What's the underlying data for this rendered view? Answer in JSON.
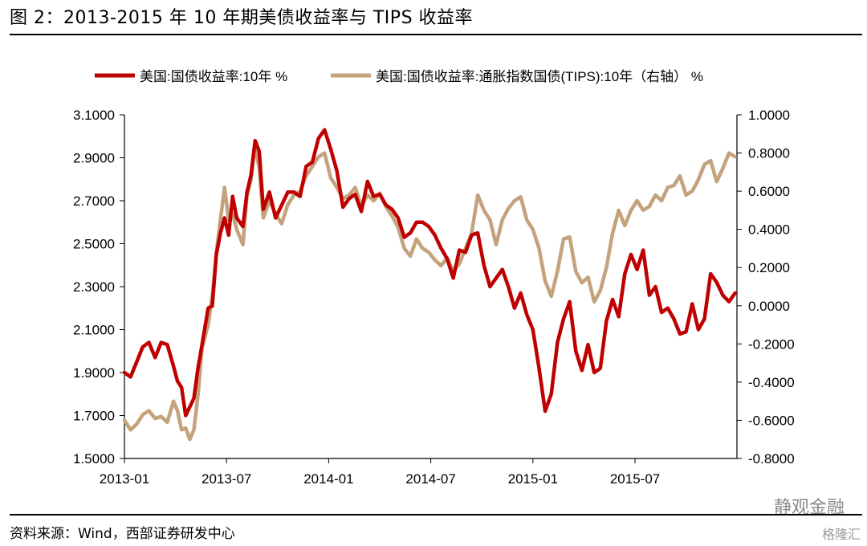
{
  "header": {
    "title": "图 2：2013-2015 年 10 年期美债收益率与 TIPS 收益率"
  },
  "footer": {
    "source": "资料来源：Wind，西部证券研发中心"
  },
  "watermark": {
    "text": "静观金融",
    "brand": "格隆汇"
  },
  "colors": {
    "nominal": "#c00000",
    "tips": "#c4a27c",
    "axis": "#000000"
  },
  "chart_data": {
    "type": "line",
    "title": "",
    "x_ticks": [
      "2013-01",
      "2013-07",
      "2014-01",
      "2014-07",
      "2015-01",
      "2015-07"
    ],
    "x_range": [
      "2013-01",
      "2015-12"
    ],
    "y_left": {
      "range": [
        1.5,
        3.1
      ],
      "ticks": [
        "1.5000",
        "1.7000",
        "1.9000",
        "2.1000",
        "2.3000",
        "2.5000",
        "2.7000",
        "2.9000",
        "3.1000"
      ]
    },
    "y_right": {
      "range": [
        -0.8,
        1.0
      ],
      "ticks": [
        "-0.8000",
        "-0.6000",
        "-0.4000",
        "-0.2000",
        "0.0000",
        "0.2000",
        "0.4000",
        "0.6000",
        "0.8000",
        "1.0000"
      ]
    },
    "grid": false,
    "legend_position": "top",
    "series": [
      {
        "name": "美国:国债收益率:10年 %",
        "axis": "left",
        "values": [
          [
            2013.0,
            1.9
          ],
          [
            2013.03,
            1.88
          ],
          [
            2013.06,
            1.95
          ],
          [
            2013.09,
            2.02
          ],
          [
            2013.12,
            2.04
          ],
          [
            2013.15,
            1.97
          ],
          [
            2013.18,
            2.04
          ],
          [
            2013.21,
            2.03
          ],
          [
            2013.24,
            1.93
          ],
          [
            2013.26,
            1.86
          ],
          [
            2013.28,
            1.83
          ],
          [
            2013.3,
            1.7
          ],
          [
            2013.32,
            1.74
          ],
          [
            2013.34,
            1.78
          ],
          [
            2013.36,
            1.92
          ],
          [
            2013.38,
            2.03
          ],
          [
            2013.41,
            2.2
          ],
          [
            2013.43,
            2.21
          ],
          [
            2013.45,
            2.45
          ],
          [
            2013.47,
            2.55
          ],
          [
            2013.49,
            2.62
          ],
          [
            2013.51,
            2.54
          ],
          [
            2013.53,
            2.72
          ],
          [
            2013.55,
            2.62
          ],
          [
            2013.58,
            2.58
          ],
          [
            2013.6,
            2.74
          ],
          [
            2013.62,
            2.82
          ],
          [
            2013.64,
            2.98
          ],
          [
            2013.66,
            2.93
          ],
          [
            2013.68,
            2.66
          ],
          [
            2013.71,
            2.74
          ],
          [
            2013.74,
            2.62
          ],
          [
            2013.77,
            2.68
          ],
          [
            2013.8,
            2.74
          ],
          [
            2013.83,
            2.74
          ],
          [
            2013.86,
            2.72
          ],
          [
            2013.89,
            2.86
          ],
          [
            2013.92,
            2.88
          ],
          [
            2013.95,
            2.99
          ],
          [
            2013.98,
            3.03
          ],
          [
            2014.01,
            2.94
          ],
          [
            2014.04,
            2.84
          ],
          [
            2014.07,
            2.67
          ],
          [
            2014.1,
            2.71
          ],
          [
            2014.13,
            2.73
          ],
          [
            2014.16,
            2.65
          ],
          [
            2014.19,
            2.79
          ],
          [
            2014.22,
            2.72
          ],
          [
            2014.25,
            2.73
          ],
          [
            2014.28,
            2.68
          ],
          [
            2014.31,
            2.66
          ],
          [
            2014.34,
            2.62
          ],
          [
            2014.37,
            2.53
          ],
          [
            2014.4,
            2.55
          ],
          [
            2014.43,
            2.6
          ],
          [
            2014.46,
            2.6
          ],
          [
            2014.49,
            2.58
          ],
          [
            2014.52,
            2.54
          ],
          [
            2014.55,
            2.48
          ],
          [
            2014.58,
            2.43
          ],
          [
            2014.61,
            2.34
          ],
          [
            2014.64,
            2.47
          ],
          [
            2014.67,
            2.46
          ],
          [
            2014.7,
            2.54
          ],
          [
            2014.73,
            2.55
          ],
          [
            2014.76,
            2.4
          ],
          [
            2014.79,
            2.3
          ],
          [
            2014.82,
            2.34
          ],
          [
            2014.85,
            2.38
          ],
          [
            2014.88,
            2.3
          ],
          [
            2014.91,
            2.2
          ],
          [
            2014.94,
            2.27
          ],
          [
            2014.97,
            2.17
          ],
          [
            2015.0,
            2.1
          ],
          [
            2015.03,
            1.92
          ],
          [
            2015.06,
            1.72
          ],
          [
            2015.09,
            1.8
          ],
          [
            2015.12,
            2.04
          ],
          [
            2015.15,
            2.15
          ],
          [
            2015.18,
            2.23
          ],
          [
            2015.21,
            2.0
          ],
          [
            2015.24,
            1.91
          ],
          [
            2015.27,
            2.03
          ],
          [
            2015.3,
            1.9
          ],
          [
            2015.33,
            1.92
          ],
          [
            2015.36,
            2.14
          ],
          [
            2015.39,
            2.24
          ],
          [
            2015.42,
            2.16
          ],
          [
            2015.45,
            2.36
          ],
          [
            2015.48,
            2.45
          ],
          [
            2015.51,
            2.38
          ],
          [
            2015.54,
            2.47
          ],
          [
            2015.57,
            2.26
          ],
          [
            2015.6,
            2.3
          ],
          [
            2015.63,
            2.18
          ],
          [
            2015.66,
            2.2
          ],
          [
            2015.69,
            2.15
          ],
          [
            2015.72,
            2.08
          ],
          [
            2015.75,
            2.09
          ],
          [
            2015.78,
            2.22
          ],
          [
            2015.81,
            2.1
          ],
          [
            2015.84,
            2.15
          ],
          [
            2015.87,
            2.36
          ],
          [
            2015.9,
            2.32
          ],
          [
            2015.93,
            2.26
          ],
          [
            2015.96,
            2.23
          ],
          [
            2015.99,
            2.27
          ]
        ]
      },
      {
        "name": "美国:国债收益率:通胀指数国债(TIPS):10年（右轴） %",
        "axis": "right",
        "values": [
          [
            2013.0,
            -0.6
          ],
          [
            2013.03,
            -0.65
          ],
          [
            2013.06,
            -0.62
          ],
          [
            2013.09,
            -0.57
          ],
          [
            2013.12,
            -0.55
          ],
          [
            2013.15,
            -0.59
          ],
          [
            2013.18,
            -0.58
          ],
          [
            2013.21,
            -0.61
          ],
          [
            2013.24,
            -0.5
          ],
          [
            2013.26,
            -0.55
          ],
          [
            2013.28,
            -0.65
          ],
          [
            2013.3,
            -0.64
          ],
          [
            2013.32,
            -0.7
          ],
          [
            2013.34,
            -0.65
          ],
          [
            2013.36,
            -0.47
          ],
          [
            2013.38,
            -0.22
          ],
          [
            2013.41,
            -0.1
          ],
          [
            2013.43,
            0.05
          ],
          [
            2013.45,
            0.28
          ],
          [
            2013.47,
            0.45
          ],
          [
            2013.49,
            0.62
          ],
          [
            2013.51,
            0.45
          ],
          [
            2013.53,
            0.48
          ],
          [
            2013.55,
            0.4
          ],
          [
            2013.58,
            0.32
          ],
          [
            2013.6,
            0.58
          ],
          [
            2013.62,
            0.66
          ],
          [
            2013.64,
            0.84
          ],
          [
            2013.66,
            0.72
          ],
          [
            2013.68,
            0.46
          ],
          [
            2013.71,
            0.55
          ],
          [
            2013.74,
            0.48
          ],
          [
            2013.77,
            0.43
          ],
          [
            2013.8,
            0.53
          ],
          [
            2013.83,
            0.58
          ],
          [
            2013.86,
            0.6
          ],
          [
            2013.89,
            0.68
          ],
          [
            2013.92,
            0.73
          ],
          [
            2013.95,
            0.78
          ],
          [
            2013.98,
            0.8
          ],
          [
            2014.01,
            0.67
          ],
          [
            2014.04,
            0.62
          ],
          [
            2014.07,
            0.56
          ],
          [
            2014.1,
            0.58
          ],
          [
            2014.13,
            0.62
          ],
          [
            2014.16,
            0.52
          ],
          [
            2014.19,
            0.58
          ],
          [
            2014.22,
            0.55
          ],
          [
            2014.25,
            0.59
          ],
          [
            2014.28,
            0.52
          ],
          [
            2014.31,
            0.47
          ],
          [
            2014.34,
            0.41
          ],
          [
            2014.37,
            0.3
          ],
          [
            2014.4,
            0.26
          ],
          [
            2014.43,
            0.35
          ],
          [
            2014.46,
            0.3
          ],
          [
            2014.49,
            0.28
          ],
          [
            2014.52,
            0.24
          ],
          [
            2014.55,
            0.21
          ],
          [
            2014.58,
            0.25
          ],
          [
            2014.61,
            0.18
          ],
          [
            2014.64,
            0.22
          ],
          [
            2014.67,
            0.3
          ],
          [
            2014.7,
            0.38
          ],
          [
            2014.73,
            0.58
          ],
          [
            2014.76,
            0.5
          ],
          [
            2014.79,
            0.45
          ],
          [
            2014.82,
            0.32
          ],
          [
            2014.85,
            0.45
          ],
          [
            2014.88,
            0.51
          ],
          [
            2014.91,
            0.55
          ],
          [
            2014.94,
            0.57
          ],
          [
            2014.97,
            0.45
          ],
          [
            2015.0,
            0.4
          ],
          [
            2015.03,
            0.3
          ],
          [
            2015.06,
            0.13
          ],
          [
            2015.09,
            0.05
          ],
          [
            2015.12,
            0.18
          ],
          [
            2015.15,
            0.35
          ],
          [
            2015.18,
            0.36
          ],
          [
            2015.21,
            0.18
          ],
          [
            2015.24,
            0.12
          ],
          [
            2015.27,
            0.15
          ],
          [
            2015.3,
            0.02
          ],
          [
            2015.33,
            0.08
          ],
          [
            2015.36,
            0.2
          ],
          [
            2015.39,
            0.38
          ],
          [
            2015.42,
            0.5
          ],
          [
            2015.45,
            0.42
          ],
          [
            2015.48,
            0.5
          ],
          [
            2015.51,
            0.55
          ],
          [
            2015.54,
            0.5
          ],
          [
            2015.57,
            0.52
          ],
          [
            2015.6,
            0.58
          ],
          [
            2015.63,
            0.55
          ],
          [
            2015.66,
            0.62
          ],
          [
            2015.69,
            0.63
          ],
          [
            2015.72,
            0.68
          ],
          [
            2015.75,
            0.58
          ],
          [
            2015.78,
            0.6
          ],
          [
            2015.81,
            0.66
          ],
          [
            2015.84,
            0.74
          ],
          [
            2015.87,
            0.76
          ],
          [
            2015.9,
            0.65
          ],
          [
            2015.93,
            0.72
          ],
          [
            2015.96,
            0.8
          ],
          [
            2015.99,
            0.78
          ]
        ]
      }
    ]
  }
}
